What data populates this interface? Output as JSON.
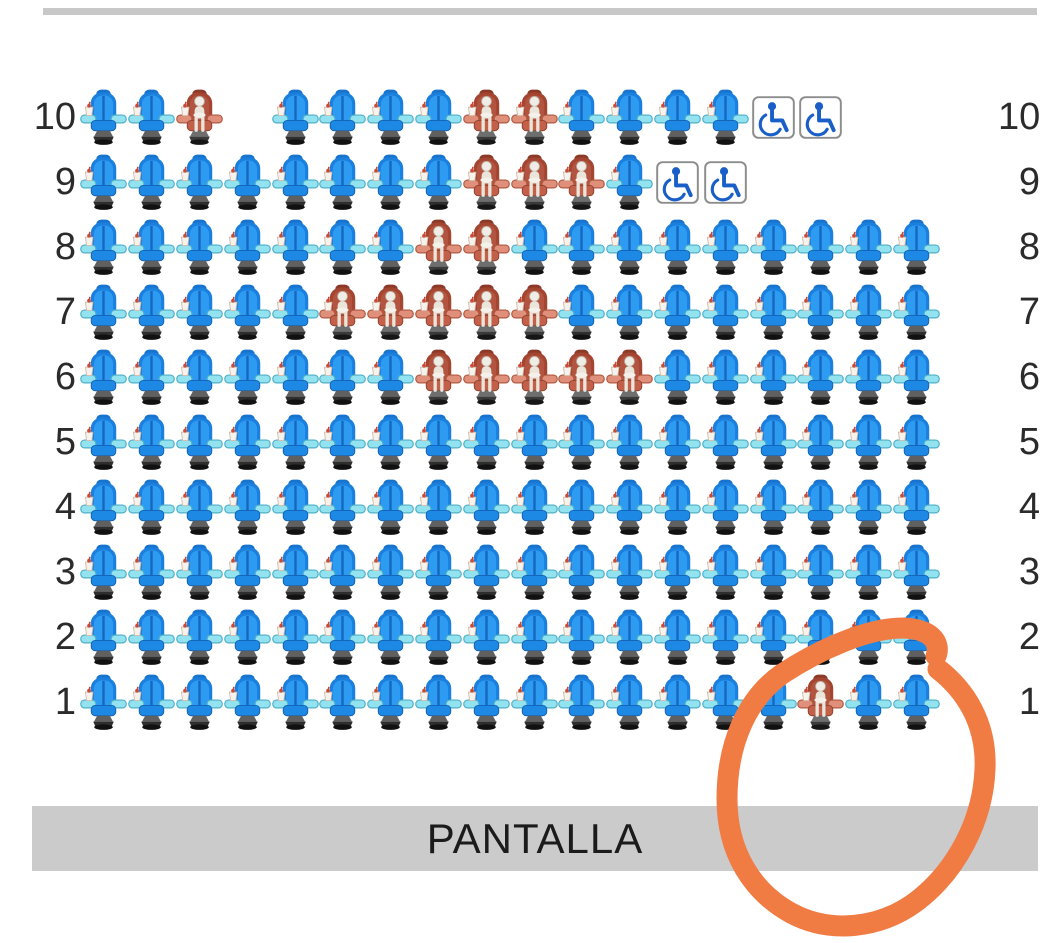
{
  "seat_map": {
    "rows": [
      {
        "label": "10",
        "seats": [
          "available",
          "available",
          "occupied",
          "gap",
          "available",
          "available",
          "available",
          "available",
          "occupied",
          "occupied",
          "available",
          "available",
          "available",
          "available",
          "wheelchair",
          "wheelchair"
        ]
      },
      {
        "label": "9",
        "seats": [
          "available",
          "available",
          "available",
          "available",
          "available",
          "available",
          "available",
          "available",
          "occupied",
          "occupied",
          "occupied",
          "available",
          "wheelchair",
          "wheelchair"
        ]
      },
      {
        "label": "8",
        "seats": [
          "available",
          "available",
          "available",
          "available",
          "available",
          "available",
          "available",
          "occupied",
          "occupied",
          "available",
          "available",
          "available",
          "available",
          "available",
          "available",
          "available",
          "available",
          "available"
        ]
      },
      {
        "label": "7",
        "seats": [
          "available",
          "available",
          "available",
          "available",
          "available",
          "occupied",
          "occupied",
          "occupied",
          "occupied",
          "occupied",
          "available",
          "available",
          "available",
          "available",
          "available",
          "available",
          "available",
          "available"
        ]
      },
      {
        "label": "6",
        "seats": [
          "available",
          "available",
          "available",
          "available",
          "available",
          "available",
          "available",
          "occupied",
          "occupied",
          "occupied",
          "occupied",
          "occupied",
          "available",
          "available",
          "available",
          "available",
          "available",
          "available"
        ]
      },
      {
        "label": "5",
        "seats": [
          "available",
          "available",
          "available",
          "available",
          "available",
          "available",
          "available",
          "available",
          "available",
          "available",
          "available",
          "available",
          "available",
          "available",
          "available",
          "available",
          "available",
          "available"
        ]
      },
      {
        "label": "4",
        "seats": [
          "available",
          "available",
          "available",
          "available",
          "available",
          "available",
          "available",
          "available",
          "available",
          "available",
          "available",
          "available",
          "available",
          "available",
          "available",
          "available",
          "available",
          "available"
        ]
      },
      {
        "label": "3",
        "seats": [
          "available",
          "available",
          "available",
          "available",
          "available",
          "available",
          "available",
          "available",
          "available",
          "available",
          "available",
          "available",
          "available",
          "available",
          "available",
          "available",
          "available",
          "available"
        ]
      },
      {
        "label": "2",
        "seats": [
          "available",
          "available",
          "available",
          "available",
          "available",
          "available",
          "available",
          "available",
          "available",
          "available",
          "available",
          "available",
          "available",
          "available",
          "available",
          "available",
          "available",
          "available"
        ]
      },
      {
        "label": "1",
        "seats": [
          "available",
          "available",
          "available",
          "available",
          "available",
          "available",
          "available",
          "available",
          "available",
          "available",
          "available",
          "available",
          "available",
          "available",
          "available",
          "occupied",
          "available",
          "available"
        ]
      }
    ]
  },
  "screen": {
    "label": "PANTALLA",
    "bar_color": "#cbcbcb"
  },
  "top_divider": {
    "color": "#c8c8c8"
  },
  "annotation": {
    "shape": "hand-drawn-circle",
    "color": "#F07C44"
  },
  "colors": {
    "available_seat": "#2e9bf2",
    "occupied_seat": "#a34531",
    "wheelchair_icon": "#1a5fc8",
    "row_label_text": "#2b2b2b"
  },
  "icons": {
    "available": "available-seat-icon",
    "occupied": "occupied-seat-icon",
    "wheelchair": "wheelchair-icon"
  }
}
